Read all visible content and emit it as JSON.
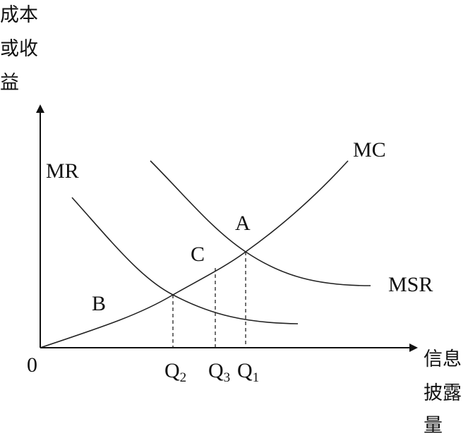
{
  "y_axis_label": [
    "成本",
    "或收",
    "益"
  ],
  "x_axis_label": [
    "信息",
    "披露",
    "量"
  ],
  "origin": "0",
  "curves": {
    "mr": "MR",
    "mc": "MC",
    "msr": "MSR"
  },
  "points": {
    "a": "A",
    "b": "B",
    "c": "C"
  },
  "quantities": [
    {
      "main": "Q",
      "sub": "2"
    },
    {
      "main": "Q",
      "sub": "3"
    },
    {
      "main": "Q",
      "sub": "1"
    }
  ]
}
